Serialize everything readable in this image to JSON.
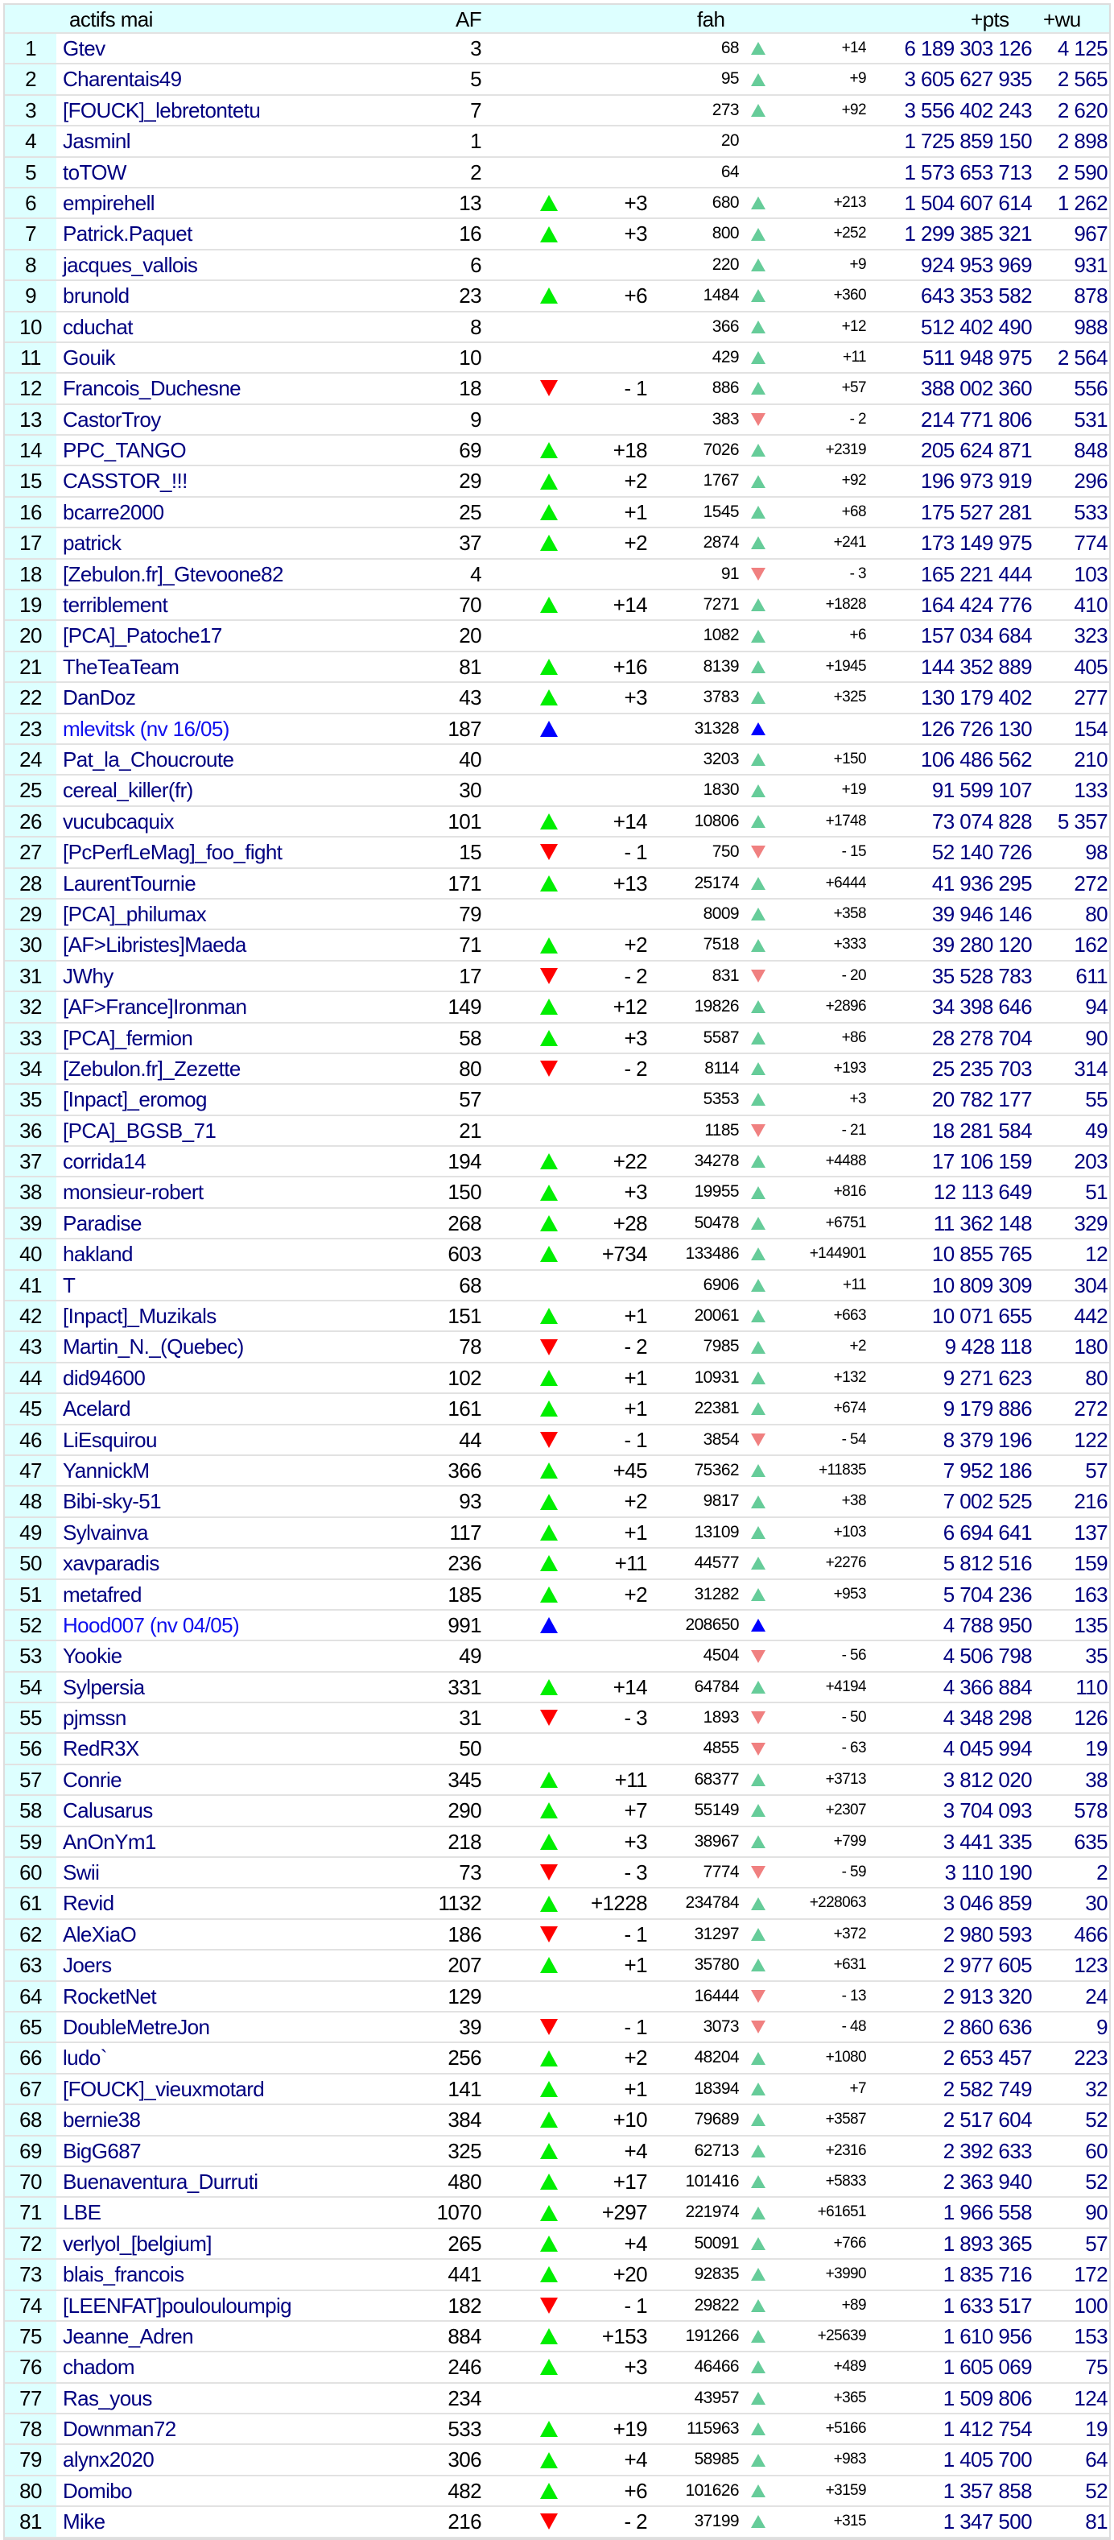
{
  "header": {
    "title": "actifs mai",
    "af": "AF",
    "fah": "fah",
    "pts": "+pts",
    "wu": "+wu"
  },
  "colors": {
    "af_up": "#00ee00",
    "af_down": "#ff0000",
    "fah_up": "#66cc99",
    "fah_down": "#f08080",
    "new": "#0000ff",
    "name": "#000080",
    "header_bg": "#ddffff"
  },
  "columns": [
    "rank",
    "name",
    "af",
    "af_trend",
    "af_delta",
    "fah",
    "fah_trend",
    "fah_delta",
    "pts",
    "wu"
  ],
  "rows": [
    [
      "1",
      "Gtev",
      "3",
      "",
      "",
      "68",
      "up",
      "+14",
      "6 189 303 126",
      "4 125"
    ],
    [
      "2",
      "Charentais49",
      "5",
      "",
      "",
      "95",
      "up",
      "+9",
      "3 605 627 935",
      "2 565"
    ],
    [
      "3",
      "[FOUCK]_lebretontetu",
      "7",
      "",
      "",
      "273",
      "up",
      "+92",
      "3 556 402 243",
      "2 620"
    ],
    [
      "4",
      "Jasminl",
      "1",
      "",
      "",
      "20",
      "",
      "",
      "1 725 859 150",
      "2 898"
    ],
    [
      "5",
      "toTOW",
      "2",
      "",
      "",
      "64",
      "",
      "",
      "1 573 653 713",
      "2 590"
    ],
    [
      "6",
      "empirehell",
      "13",
      "up",
      "+3",
      "680",
      "up",
      "+213",
      "1 504 607 614",
      "1 262"
    ],
    [
      "7",
      "Patrick.Paquet",
      "16",
      "up",
      "+3",
      "800",
      "up",
      "+252",
      "1 299 385 321",
      "967"
    ],
    [
      "8",
      "jacques_vallois",
      "6",
      "",
      "",
      "220",
      "up",
      "+9",
      "924 953 969",
      "931"
    ],
    [
      "9",
      "brunold",
      "23",
      "up",
      "+6",
      "1484",
      "up",
      "+360",
      "643 353 582",
      "878"
    ],
    [
      "10",
      "cduchat",
      "8",
      "",
      "",
      "366",
      "up",
      "+12",
      "512 402 490",
      "988"
    ],
    [
      "11",
      "Gouik",
      "10",
      "",
      "",
      "429",
      "up",
      "+11",
      "511 948 975",
      "2 564"
    ],
    [
      "12",
      "Francois_Duchesne",
      "18",
      "down",
      "- 1",
      "886",
      "up",
      "+57",
      "388 002 360",
      "556"
    ],
    [
      "13",
      "CastorTroy",
      "9",
      "",
      "",
      "383",
      "down",
      "- 2",
      "214 771 806",
      "531"
    ],
    [
      "14",
      "PPC_TANGO",
      "69",
      "up",
      "+18",
      "7026",
      "up",
      "+2319",
      "205 624 871",
      "848"
    ],
    [
      "15",
      "CASSTOR_!!!",
      "29",
      "up",
      "+2",
      "1767",
      "up",
      "+92",
      "196 973 919",
      "296"
    ],
    [
      "16",
      "bcarre2000",
      "25",
      "up",
      "+1",
      "1545",
      "up",
      "+68",
      "175 527 281",
      "533"
    ],
    [
      "17",
      "patrick",
      "37",
      "up",
      "+2",
      "2874",
      "up",
      "+241",
      "173 149 975",
      "774"
    ],
    [
      "18",
      "[Zebulon.fr]_Gtevoone82",
      "4",
      "",
      "",
      "91",
      "down",
      "- 3",
      "165 221 444",
      "103"
    ],
    [
      "19",
      "terriblement",
      "70",
      "up",
      "+14",
      "7271",
      "up",
      "+1828",
      "164 424 776",
      "410"
    ],
    [
      "20",
      "[PCA]_Patoche17",
      "20",
      "",
      "",
      "1082",
      "up",
      "+6",
      "157 034 684",
      "323"
    ],
    [
      "21",
      "TheTeaTeam",
      "81",
      "up",
      "+16",
      "8139",
      "up",
      "+1945",
      "144 352 889",
      "405"
    ],
    [
      "22",
      "DanDoz",
      "43",
      "up",
      "+3",
      "3783",
      "up",
      "+325",
      "130 179 402",
      "277"
    ],
    [
      "23",
      "mlevitsk (nv 16/05)",
      "187",
      "new",
      "",
      "31328",
      "new",
      "",
      "126 726 130",
      "154"
    ],
    [
      "24",
      "Pat_la_Choucroute",
      "40",
      "",
      "",
      "3203",
      "up",
      "+150",
      "106 486 562",
      "210"
    ],
    [
      "25",
      "cereal_killer(fr)",
      "30",
      "",
      "",
      "1830",
      "up",
      "+19",
      "91 599 107",
      "133"
    ],
    [
      "26",
      "vucubcaquix",
      "101",
      "up",
      "+14",
      "10806",
      "up",
      "+1748",
      "73 074 828",
      "5 357"
    ],
    [
      "27",
      "[PcPerfLeMag]_foo_fight",
      "15",
      "down",
      "- 1",
      "750",
      "down",
      "- 15",
      "52 140 726",
      "98"
    ],
    [
      "28",
      "LaurentTournie",
      "171",
      "up",
      "+13",
      "25174",
      "up",
      "+6444",
      "41 936 295",
      "272"
    ],
    [
      "29",
      "[PCA]_philumax",
      "79",
      "",
      "",
      "8009",
      "up",
      "+358",
      "39 946 146",
      "80"
    ],
    [
      "30",
      "[AF>Libristes]Maeda",
      "71",
      "up",
      "+2",
      "7518",
      "up",
      "+333",
      "39 280 120",
      "162"
    ],
    [
      "31",
      "JWhy",
      "17",
      "down",
      "- 2",
      "831",
      "down",
      "- 20",
      "35 528 783",
      "611"
    ],
    [
      "32",
      "[AF>France]Ironman",
      "149",
      "up",
      "+12",
      "19826",
      "up",
      "+2896",
      "34 398 646",
      "94"
    ],
    [
      "33",
      "[PCA]_fermion",
      "58",
      "up",
      "+3",
      "5587",
      "up",
      "+86",
      "28 278 704",
      "90"
    ],
    [
      "34",
      "[Zebulon.fr]_Zezette",
      "80",
      "down",
      "- 2",
      "8114",
      "up",
      "+193",
      "25 235 703",
      "314"
    ],
    [
      "35",
      "[Inpact]_eromog",
      "57",
      "",
      "",
      "5353",
      "up",
      "+3",
      "20 782 177",
      "55"
    ],
    [
      "36",
      "[PCA]_BGSB_71",
      "21",
      "",
      "",
      "1185",
      "down",
      "- 21",
      "18 281 584",
      "49"
    ],
    [
      "37",
      "corrida14",
      "194",
      "up",
      "+22",
      "34278",
      "up",
      "+4488",
      "17 106 159",
      "203"
    ],
    [
      "38",
      "monsieur-robert",
      "150",
      "up",
      "+3",
      "19955",
      "up",
      "+816",
      "12 113 649",
      "51"
    ],
    [
      "39",
      "Paradise",
      "268",
      "up",
      "+28",
      "50478",
      "up",
      "+6751",
      "11 362 148",
      "329"
    ],
    [
      "40",
      "hakland",
      "603",
      "up",
      "+734",
      "133486",
      "up",
      "+144901",
      "10 855 765",
      "12"
    ],
    [
      "41",
      "T",
      "68",
      "",
      "",
      "6906",
      "up",
      "+11",
      "10 809 309",
      "304"
    ],
    [
      "42",
      "[Inpact]_Muzikals",
      "151",
      "up",
      "+1",
      "20061",
      "up",
      "+663",
      "10 071 655",
      "442"
    ],
    [
      "43",
      "Martin_N._(Quebec)",
      "78",
      "down",
      "- 2",
      "7985",
      "up",
      "+2",
      "9 428 118",
      "180"
    ],
    [
      "44",
      "did94600",
      "102",
      "up",
      "+1",
      "10931",
      "up",
      "+132",
      "9 271 623",
      "80"
    ],
    [
      "45",
      "Acelard",
      "161",
      "up",
      "+1",
      "22381",
      "up",
      "+674",
      "9 179 886",
      "272"
    ],
    [
      "46",
      "LiEsquirou",
      "44",
      "down",
      "- 1",
      "3854",
      "down",
      "- 54",
      "8 379 196",
      "122"
    ],
    [
      "47",
      "YannickM",
      "366",
      "up",
      "+45",
      "75362",
      "up",
      "+11835",
      "7 952 186",
      "57"
    ],
    [
      "48",
      "Bibi-sky-51",
      "93",
      "up",
      "+2",
      "9817",
      "up",
      "+38",
      "7 002 525",
      "216"
    ],
    [
      "49",
      "Sylvainva",
      "117",
      "up",
      "+1",
      "13109",
      "up",
      "+103",
      "6 694 641",
      "137"
    ],
    [
      "50",
      "xavparadis",
      "236",
      "up",
      "+11",
      "44577",
      "up",
      "+2276",
      "5 812 516",
      "159"
    ],
    [
      "51",
      "metafred",
      "185",
      "up",
      "+2",
      "31282",
      "up",
      "+953",
      "5 704 236",
      "163"
    ],
    [
      "52",
      "Hood007 (nv 04/05)",
      "991",
      "new",
      "",
      "208650",
      "new",
      "",
      "4 788 950",
      "135"
    ],
    [
      "53",
      "Yookie",
      "49",
      "",
      "",
      "4504",
      "down",
      "- 56",
      "4 506 798",
      "35"
    ],
    [
      "54",
      "Sylpersia",
      "331",
      "up",
      "+14",
      "64784",
      "up",
      "+4194",
      "4 366 884",
      "110"
    ],
    [
      "55",
      "pjmssn",
      "31",
      "down",
      "- 3",
      "1893",
      "down",
      "- 50",
      "4 348 298",
      "126"
    ],
    [
      "56",
      "RedR3X",
      "50",
      "",
      "",
      "4855",
      "down",
      "- 63",
      "4 045 994",
      "19"
    ],
    [
      "57",
      "Conrie",
      "345",
      "up",
      "+11",
      "68377",
      "up",
      "+3713",
      "3 812 020",
      "38"
    ],
    [
      "58",
      "Calusarus",
      "290",
      "up",
      "+7",
      "55149",
      "up",
      "+2307",
      "3 704 093",
      "578"
    ],
    [
      "59",
      "AnOnYm1",
      "218",
      "up",
      "+3",
      "38967",
      "up",
      "+799",
      "3 441 335",
      "635"
    ],
    [
      "60",
      "Swii",
      "73",
      "down",
      "- 3",
      "7774",
      "down",
      "- 59",
      "3 110 190",
      "2"
    ],
    [
      "61",
      "Revid",
      "1132",
      "up",
      "+1228",
      "234784",
      "up",
      "+228063",
      "3 046 859",
      "30"
    ],
    [
      "62",
      "AleXiaO",
      "186",
      "down",
      "- 1",
      "31297",
      "up",
      "+372",
      "2 980 593",
      "466"
    ],
    [
      "63",
      "Joers",
      "207",
      "up",
      "+1",
      "35780",
      "up",
      "+631",
      "2 977 605",
      "123"
    ],
    [
      "64",
      "RocketNet",
      "129",
      "",
      "",
      "16444",
      "down",
      "- 13",
      "2 913 320",
      "24"
    ],
    [
      "65",
      "DoubleMetreJon",
      "39",
      "down",
      "- 1",
      "3073",
      "down",
      "- 48",
      "2 860 636",
      "9"
    ],
    [
      "66",
      "ludo`",
      "256",
      "up",
      "+2",
      "48204",
      "up",
      "+1080",
      "2 653 457",
      "223"
    ],
    [
      "67",
      "[FOUCK]_vieuxmotard",
      "141",
      "up",
      "+1",
      "18394",
      "up",
      "+7",
      "2 582 749",
      "32"
    ],
    [
      "68",
      "bernie38",
      "384",
      "up",
      "+10",
      "79689",
      "up",
      "+3587",
      "2 517 604",
      "52"
    ],
    [
      "69",
      "BigG687",
      "325",
      "up",
      "+4",
      "62713",
      "up",
      "+2316",
      "2 392 633",
      "60"
    ],
    [
      "70",
      "Buenaventura_Durruti",
      "480",
      "up",
      "+17",
      "101416",
      "up",
      "+5833",
      "2 363 940",
      "52"
    ],
    [
      "71",
      "LBE",
      "1070",
      "up",
      "+297",
      "221974",
      "up",
      "+61651",
      "1 966 558",
      "90"
    ],
    [
      "72",
      "verlyol_[belgium]",
      "265",
      "up",
      "+4",
      "50091",
      "up",
      "+766",
      "1 893 365",
      "57"
    ],
    [
      "73",
      "blais_francois",
      "441",
      "up",
      "+20",
      "92835",
      "up",
      "+3990",
      "1 835 716",
      "172"
    ],
    [
      "74",
      "[LEENFAT]poulouloumpig",
      "182",
      "down",
      "- 1",
      "29822",
      "up",
      "+89",
      "1 633 517",
      "100"
    ],
    [
      "75",
      "Jeanne_Adren",
      "884",
      "up",
      "+153",
      "191266",
      "up",
      "+25639",
      "1 610 956",
      "153"
    ],
    [
      "76",
      "chadom",
      "246",
      "up",
      "+3",
      "46466",
      "up",
      "+489",
      "1 605 069",
      "75"
    ],
    [
      "77",
      "Ras_yous",
      "234",
      "",
      "",
      "43957",
      "up",
      "+365",
      "1 509 806",
      "124"
    ],
    [
      "78",
      "Downman72",
      "533",
      "up",
      "+19",
      "115963",
      "up",
      "+5166",
      "1 412 754",
      "19"
    ],
    [
      "79",
      "alynx2020",
      "306",
      "up",
      "+4",
      "58985",
      "up",
      "+983",
      "1 405 700",
      "64"
    ],
    [
      "80",
      "Domibo",
      "482",
      "up",
      "+6",
      "101626",
      "up",
      "+3159",
      "1 357 858",
      "52"
    ],
    [
      "81",
      "Mike",
      "216",
      "down",
      "- 2",
      "37199",
      "up",
      "+315",
      "1 347 500",
      "81"
    ]
  ]
}
